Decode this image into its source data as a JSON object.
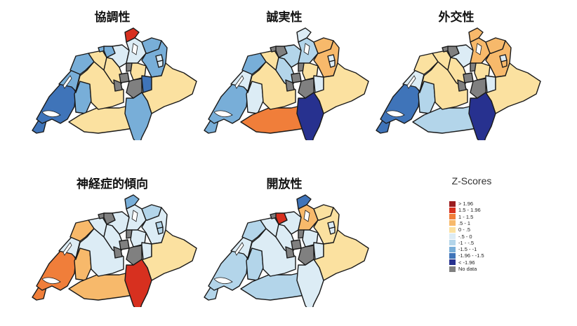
{
  "map_data": {
    "type": "choropleth",
    "region": "Switzerland (cantons)",
    "legend_title": "Z-Scores",
    "classes": [
      {
        "key": "gt196",
        "label": "> 1.96",
        "color": "#9b1c1f"
      },
      {
        "key": "15_196",
        "label": "1.5 - 1.96",
        "color": "#d7301f"
      },
      {
        "key": "1_15",
        "label": "1 - 1.5",
        "color": "#f07e3a"
      },
      {
        "key": "05_1",
        "label": ".5 - 1",
        "color": "#f7b96b"
      },
      {
        "key": "0_05",
        "label": "0 - .5",
        "color": "#fbe1a0"
      },
      {
        "key": "m05_0",
        "label": "-.5 - 0",
        "color": "#dcecf5"
      },
      {
        "key": "m1_m05",
        "label": "-1 - -.5",
        "color": "#b3d5ea"
      },
      {
        "key": "m15_m1",
        "label": "-1.5 - -1",
        "color": "#78aed8"
      },
      {
        "key": "m196_m15",
        "label": "-1.96 - -1.5",
        "color": "#3f74b9"
      },
      {
        "key": "lt_m196",
        "label": "< -1.96",
        "color": "#27318f"
      },
      {
        "key": "nodata",
        "label": "No data",
        "color": "#808080"
      }
    ],
    "panels": [
      {
        "title": "協調性",
        "values": {
          "GE": "m196_m15",
          "VD": "m196_m15",
          "VS": "0_05",
          "FR": "m15_m1",
          "NE": "m15_m1",
          "JU": "m15_m1",
          "BE": "0_05",
          "SO": "0_05",
          "BS": "m15_m1",
          "BL": "m15_m1",
          "AG": "m05_0",
          "LU": "0_05",
          "ZH": "m05_0",
          "SH": "15_196",
          "TG": "m15_m1",
          "SG": "m15_m1",
          "AR": "m05_0",
          "AI": "m05_0",
          "ZG": "nodata",
          "SZ": "0_05",
          "NW": "nodata",
          "OW": "nodata",
          "UR": "nodata",
          "GL": "m196_m15",
          "GR": "0_05",
          "TI": "m15_m1"
        }
      },
      {
        "title": "誠実性",
        "values": {
          "GE": "m15_m1",
          "VD": "m15_m1",
          "VS": "1_15",
          "FR": "m05_0",
          "NE": "m05_0",
          "JU": "m15_m1",
          "BE": "0_05",
          "SO": "0_05",
          "BS": "nodata",
          "BL": "nodata",
          "AG": "m1_m05",
          "LU": "m1_m05",
          "ZH": "m1_m05",
          "SH": "m05_0",
          "TG": "05_1",
          "SG": "05_1",
          "AR": "m05_0",
          "AI": "m05_0",
          "ZG": "nodata",
          "SZ": "0_05",
          "NW": "nodata",
          "OW": "nodata",
          "UR": "nodata",
          "GL": "m05_0",
          "GR": "0_05",
          "TI": "lt_m196"
        }
      },
      {
        "title": "外交性",
        "values": {
          "GE": "m196_m15",
          "VD": "m196_m15",
          "VS": "m1_m05",
          "FR": "m1_m05",
          "NE": "m05_0",
          "JU": "0_05",
          "BE": "0_05",
          "SO": "0_05",
          "BS": "nodata",
          "BL": "nodata",
          "AG": "m05_0",
          "LU": "0_05",
          "ZH": "05_1",
          "SH": "05_1",
          "TG": "05_1",
          "SG": "05_1",
          "AR": "m05_0",
          "AI": "05_1",
          "ZG": "nodata",
          "SZ": "0_05",
          "NW": "nodata",
          "OW": "nodata",
          "UR": "nodata",
          "GL": "m05_0",
          "GR": "0_05",
          "TI": "lt_m196"
        }
      },
      {
        "title": "神経症的傾向",
        "values": {
          "GE": "1_15",
          "VD": "1_15",
          "VS": "05_1",
          "FR": "05_1",
          "NE": "m05_0",
          "JU": "05_1",
          "BE": "m05_0",
          "SO": "m05_0",
          "BS": "nodata",
          "BL": "nodata",
          "AG": "m05_0",
          "LU": "m05_0",
          "ZH": "m05_0",
          "SH": "m15_m1",
          "TG": "m1_m05",
          "SG": "m05_0",
          "AR": "m1_m05",
          "AI": "m1_m05",
          "ZG": "nodata",
          "SZ": "m05_0",
          "NW": "nodata",
          "OW": "nodata",
          "UR": "nodata",
          "GL": "m05_0",
          "GR": "0_05",
          "TI": "15_196"
        }
      },
      {
        "title": "開放性",
        "values": {
          "GE": "m1_m05",
          "VD": "m1_m05",
          "VS": "m1_m05",
          "FR": "m1_m05",
          "NE": "m05_0",
          "JU": "m1_m05",
          "BE": "m05_0",
          "SO": "m05_0",
          "BS": "nodata",
          "BL": "15_196",
          "AG": "m05_0",
          "LU": "m05_0",
          "ZH": "05_1",
          "SH": "m196_m15",
          "TG": "0_05",
          "SG": "0_05",
          "AR": "m05_0",
          "AI": "m05_0",
          "ZG": "nodata",
          "SZ": "m05_0",
          "NW": "nodata",
          "OW": "nodata",
          "UR": "nodata",
          "GL": "m05_0",
          "GR": "0_05",
          "TI": "m05_0"
        }
      }
    ]
  }
}
